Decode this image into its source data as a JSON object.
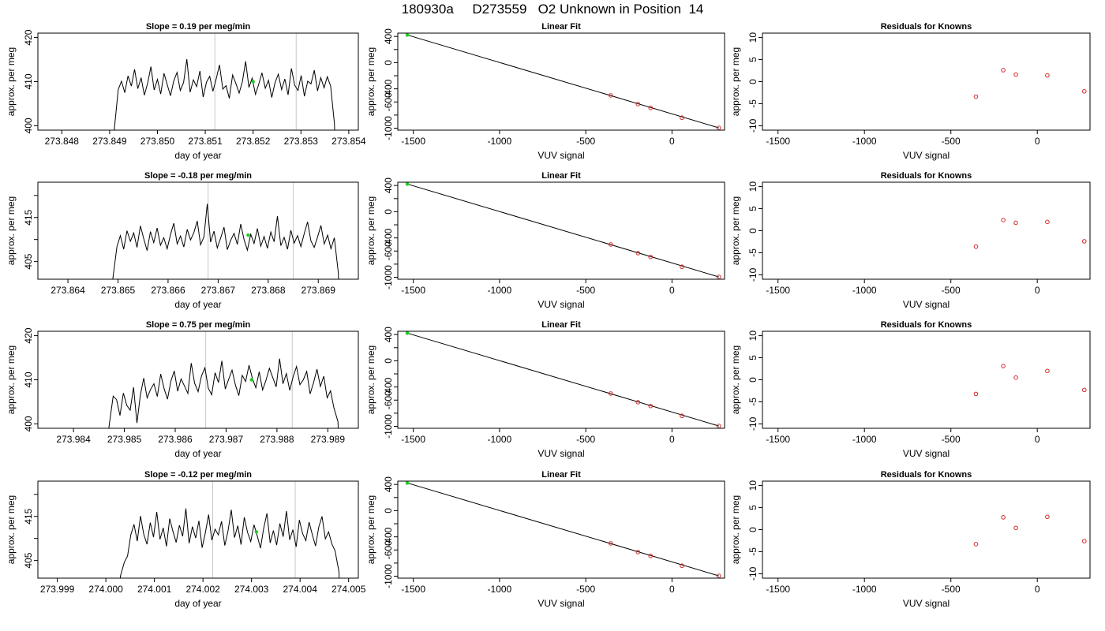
{
  "figure": {
    "title": "180930a     D273559   O2 Unknown in Position  14"
  },
  "labels": {
    "ts_xlabel": "day of year",
    "ylabel": "approx. per meg",
    "fit_title": "Linear Fit",
    "resid_title": "Residuals for Knowns",
    "fit_xlabel": "VUV signal"
  },
  "colors": {
    "line": "#000000",
    "known_points": "#d62728",
    "unknown_point": "#22cc22",
    "vertical_markers": "#c8c8c8"
  },
  "chart_data": [
    {
      "type": "line",
      "row": 1,
      "title": "Slope =  0.19  per meg/min",
      "xlabel": "day of year",
      "ylabel": "approx. per meg",
      "xlim": [
        273.8475,
        273.8542
      ],
      "ylim": [
        399,
        421
      ],
      "xticks": [
        "273.848",
        "273.849",
        "273.850",
        "273.851",
        "273.852",
        "273.853",
        "273.854"
      ],
      "xtick_values": [
        273.848,
        273.849,
        273.85,
        273.851,
        273.852,
        273.853,
        273.854
      ],
      "yticks": [
        400,
        410,
        420
      ],
      "vlines": [
        273.8512,
        273.8529
      ],
      "trace": {
        "x_start": 273.8491,
        "x_end": 273.8537,
        "base": 409.5,
        "values": [
          408.2,
          410.1,
          407.5,
          411.3,
          409.0,
          412.8,
          408.4,
          410.9,
          406.9,
          409.7,
          413.4,
          408.1,
          410.5,
          407.2,
          411.9,
          409.3,
          406.8,
          410.2,
          412.1,
          408.0,
          409.8,
          415.1,
          407.6,
          410.4,
          408.9,
          412.4,
          406.5,
          409.9,
          411.2,
          407.8,
          410.7,
          413.8,
          408.3,
          409.1,
          406.2,
          411.5,
          409.6,
          407.4,
          410.0,
          414.6,
          408.7,
          410.8,
          407.1,
          409.4,
          412.0,
          408.5,
          410.3,
          406.4,
          409.8,
          411.7,
          408.2,
          410.6,
          407.0,
          413.0,
          409.2,
          408.0,
          411.4,
          406.7,
          410.1,
          409.5,
          412.6,
          407.9,
          410.9,
          408.6,
          411.1,
          409.0
        ]
      },
      "unknown_point": {
        "x": 273.852,
        "y": 410.0
      }
    },
    {
      "type": "scatter",
      "row": 1,
      "title": "Linear Fit",
      "xlabel": "VUV signal",
      "ylabel": "approx. per meg",
      "xlim": [
        -1590,
        305
      ],
      "ylim": [
        -1030,
        450
      ],
      "xticks": [
        -1500,
        -1000,
        -500,
        0
      ],
      "yticks": [
        -1000,
        -800,
        -600,
        -400,
        -200,
        0,
        200,
        400
      ],
      "ytick_labels": [
        "-1000",
        "",
        "-600",
        "-400",
        "",
        "0",
        "",
        "400"
      ],
      "fit_line": [
        [
          -1535,
          422
        ],
        [
          272,
          -995
        ]
      ],
      "known_points": [
        {
          "x": -355,
          "y": -500
        },
        {
          "x": -197,
          "y": -632
        },
        {
          "x": -124,
          "y": -690
        },
        {
          "x": 58,
          "y": -840
        },
        {
          "x": 272,
          "y": -995
        }
      ],
      "unknown_point": {
        "x": -1535,
        "y": 422
      }
    },
    {
      "type": "scatter",
      "row": 1,
      "title": "Residuals for Knowns",
      "xlabel": "VUV signal",
      "ylabel": "approx. per meg",
      "xlim": [
        -1590,
        305
      ],
      "ylim": [
        -11,
        11
      ],
      "xticks": [
        -1500,
        -1000,
        -500,
        0
      ],
      "yticks": [
        -10,
        -5,
        0,
        5,
        10
      ],
      "known_points": [
        {
          "x": -355,
          "y": -3.4
        },
        {
          "x": -197,
          "y": 2.6
        },
        {
          "x": -124,
          "y": 1.6
        },
        {
          "x": 58,
          "y": 1.4
        },
        {
          "x": 272,
          "y": -2.2
        }
      ]
    },
    {
      "type": "line",
      "row": 2,
      "title": "Slope =  -0.18  per meg/min",
      "xlabel": "day of year",
      "ylabel": "approx. per meg",
      "xlim": [
        273.8634,
        273.8698
      ],
      "ylim": [
        401,
        423
      ],
      "xticks": [
        "273.864",
        "273.865",
        "273.866",
        "273.867",
        "273.868",
        "273.869"
      ],
      "xtick_values": [
        273.864,
        273.865,
        273.866,
        273.867,
        273.868,
        273.869
      ],
      "yticks": [
        405,
        415
      ],
      "yticks_minor": [
        410,
        420
      ],
      "vlines": [
        273.8668,
        273.8685
      ],
      "trace": {
        "x_start": 273.8649,
        "x_end": 273.8694,
        "base": 410.5,
        "values": [
          408.4,
          410.9,
          407.8,
          412.0,
          409.6,
          411.5,
          408.2,
          413.1,
          410.2,
          407.5,
          411.8,
          409.3,
          412.6,
          408.7,
          410.4,
          407.9,
          411.1,
          413.7,
          409.0,
          410.8,
          408.3,
          412.3,
          409.9,
          411.6,
          414.2,
          408.8,
          410.6,
          418.1,
          409.4,
          411.9,
          408.1,
          410.3,
          412.8,
          407.7,
          409.8,
          411.4,
          408.9,
          413.5,
          410.0,
          407.6,
          411.2,
          409.1,
          412.5,
          408.5,
          410.7,
          408.0,
          411.7,
          409.5,
          415.3,
          408.6,
          410.5,
          407.8,
          412.1,
          409.2,
          410.9,
          408.4,
          411.3,
          414.0,
          409.7,
          408.2,
          410.6,
          413.2,
          409.0,
          411.0,
          407.9,
          410.4
        ]
      },
      "unknown_point": {
        "x": 273.8676,
        "y": 411.0
      }
    },
    {
      "type": "scatter",
      "row": 2,
      "title": "Linear Fit",
      "xlabel": "VUV signal",
      "ylabel": "approx. per meg",
      "xlim": [
        -1590,
        305
      ],
      "ylim": [
        -1030,
        450
      ],
      "xticks": [
        -1500,
        -1000,
        -500,
        0
      ],
      "yticks": [
        -1000,
        -800,
        -600,
        -400,
        -200,
        0,
        200,
        400
      ],
      "ytick_labels": [
        "-1000",
        "",
        "-600",
        "-400",
        "",
        "0",
        "",
        "400"
      ],
      "fit_line": [
        [
          -1535,
          422
        ],
        [
          272,
          -995
        ]
      ],
      "known_points": [
        {
          "x": -355,
          "y": -500
        },
        {
          "x": -197,
          "y": -632
        },
        {
          "x": -124,
          "y": -690
        },
        {
          "x": 58,
          "y": -840
        },
        {
          "x": 272,
          "y": -995
        }
      ],
      "unknown_point": {
        "x": -1535,
        "y": 422
      }
    },
    {
      "type": "scatter",
      "row": 2,
      "title": "Residuals for Knowns",
      "xlabel": "VUV signal",
      "ylabel": "approx. per meg",
      "xlim": [
        -1590,
        305
      ],
      "ylim": [
        -11,
        11
      ],
      "xticks": [
        -1500,
        -1000,
        -500,
        0
      ],
      "yticks": [
        -10,
        -5,
        0,
        5,
        10
      ],
      "known_points": [
        {
          "x": -355,
          "y": -3.6
        },
        {
          "x": -197,
          "y": 2.4
        },
        {
          "x": -124,
          "y": 1.8
        },
        {
          "x": 58,
          "y": 2.0
        },
        {
          "x": 272,
          "y": -2.4
        }
      ]
    },
    {
      "type": "line",
      "row": 3,
      "title": "Slope =  0.75  per meg/min",
      "xlabel": "day of year",
      "ylabel": "approx. per meg",
      "xlim": [
        273.9833,
        273.9896
      ],
      "ylim": [
        399,
        421
      ],
      "xticks": [
        "273.984",
        "273.985",
        "273.986",
        "273.987",
        "273.988",
        "273.989"
      ],
      "xtick_values": [
        273.984,
        273.985,
        273.986,
        273.987,
        273.988,
        273.989
      ],
      "yticks": [
        400,
        410,
        420
      ],
      "vlines": [
        273.9866,
        273.9883
      ],
      "trace": {
        "x_start": 273.9847,
        "x_end": 273.9892,
        "base": 408.5,
        "values": [
          406.3,
          405.5,
          401.9,
          407.0,
          404.2,
          403.1,
          408.3,
          400.2,
          406.5,
          410.4,
          405.9,
          407.8,
          409.1,
          406.2,
          411.3,
          408.0,
          405.6,
          409.7,
          412.0,
          407.4,
          410.2,
          408.6,
          406.9,
          413.8,
          409.2,
          407.3,
          410.9,
          412.7,
          408.1,
          406.6,
          411.6,
          409.4,
          414.3,
          407.9,
          410.1,
          412.2,
          408.8,
          406.4,
          411.0,
          409.6,
          413.3,
          410.3,
          408.2,
          411.8,
          407.7,
          409.9,
          412.6,
          410.5,
          408.4,
          414.8,
          409.1,
          411.4,
          407.6,
          410.7,
          413.0,
          408.9,
          410.0,
          411.9,
          406.8,
          409.3,
          412.4,
          408.5,
          410.8,
          405.9,
          407.5,
          403.6
        ]
      },
      "unknown_point": {
        "x": 273.9875,
        "y": 410.0
      }
    },
    {
      "type": "scatter",
      "row": 3,
      "title": "Linear Fit",
      "xlabel": "VUV signal",
      "ylabel": "approx. per meg",
      "xlim": [
        -1590,
        305
      ],
      "ylim": [
        -1030,
        450
      ],
      "xticks": [
        -1500,
        -1000,
        -500,
        0
      ],
      "yticks": [
        -1000,
        -800,
        -600,
        -400,
        -200,
        0,
        200,
        400
      ],
      "ytick_labels": [
        "-1000",
        "",
        "-600",
        "-400",
        "",
        "0",
        "",
        "400"
      ],
      "fit_line": [
        [
          -1535,
          422
        ],
        [
          272,
          -995
        ]
      ],
      "known_points": [
        {
          "x": -355,
          "y": -500
        },
        {
          "x": -197,
          "y": -632
        },
        {
          "x": -124,
          "y": -690
        },
        {
          "x": 58,
          "y": -840
        },
        {
          "x": 272,
          "y": -995
        }
      ],
      "unknown_point": {
        "x": -1535,
        "y": 422
      }
    },
    {
      "type": "scatter",
      "row": 3,
      "title": "Residuals for Knowns",
      "xlabel": "VUV signal",
      "ylabel": "approx. per meg",
      "xlim": [
        -1590,
        305
      ],
      "ylim": [
        -11,
        11
      ],
      "xticks": [
        -1500,
        -1000,
        -500,
        0
      ],
      "yticks": [
        -10,
        -5,
        0,
        5,
        10
      ],
      "known_points": [
        {
          "x": -355,
          "y": -3.2
        },
        {
          "x": -197,
          "y": 3.1
        },
        {
          "x": -124,
          "y": 0.5
        },
        {
          "x": 58,
          "y": 2.0
        },
        {
          "x": 272,
          "y": -2.3
        }
      ]
    },
    {
      "type": "line",
      "row": 4,
      "title": "Slope =  -0.12  per meg/min",
      "xlabel": "day of year",
      "ylabel": "approx. per meg",
      "xlim": [
        273.9986,
        274.0052
      ],
      "ylim": [
        401,
        423
      ],
      "xticks": [
        "273.999",
        "274.000",
        "274.001",
        "274.002",
        "274.003",
        "274.004",
        "274.005"
      ],
      "xtick_values": [
        273.999,
        274.0,
        274.001,
        274.002,
        274.003,
        274.004,
        274.005
      ],
      "yticks": [
        405,
        415
      ],
      "yticks_minor": [
        410,
        420
      ],
      "vlines": [
        274.0022,
        274.0039
      ],
      "trace": {
        "x_start": 274.0003,
        "x_end": 274.0048,
        "base": 411.5,
        "values": [
          404.6,
          406.0,
          410.8,
          413.2,
          409.4,
          415.1,
          411.0,
          408.7,
          413.6,
          410.3,
          416.0,
          409.8,
          412.4,
          408.2,
          414.5,
          411.6,
          409.1,
          413.0,
          410.5,
          416.8,
          408.9,
          412.7,
          410.1,
          414.0,
          407.9,
          411.3,
          415.4,
          409.6,
          412.1,
          410.8,
          413.9,
          408.4,
          411.7,
          416.5,
          410.2,
          412.9,
          408.6,
          414.8,
          411.4,
          409.3,
          413.1,
          410.6,
          407.8,
          412.3,
          415.7,
          409.0,
          411.8,
          408.5,
          413.4,
          410.4,
          416.2,
          409.7,
          412.0,
          408.1,
          414.2,
          411.1,
          409.5,
          413.7,
          410.9,
          408.3,
          412.6,
          415.0,
          409.9,
          411.5,
          408.8,
          407.2
        ]
      },
      "unknown_point": {
        "x": 274.0031,
        "y": 411.5
      }
    },
    {
      "type": "scatter",
      "row": 4,
      "title": "Linear Fit",
      "xlabel": "VUV signal",
      "ylabel": "approx. per meg",
      "xlim": [
        -1590,
        305
      ],
      "ylim": [
        -1030,
        450
      ],
      "xticks": [
        -1500,
        -1000,
        -500,
        0
      ],
      "yticks": [
        -1000,
        -800,
        -600,
        -400,
        -200,
        0,
        200,
        400
      ],
      "ytick_labels": [
        "-1000",
        "",
        "-600",
        "-400",
        "",
        "0",
        "",
        "400"
      ],
      "fit_line": [
        [
          -1535,
          422
        ],
        [
          272,
          -995
        ]
      ],
      "known_points": [
        {
          "x": -355,
          "y": -500
        },
        {
          "x": -197,
          "y": -632
        },
        {
          "x": -124,
          "y": -690
        },
        {
          "x": 58,
          "y": -840
        },
        {
          "x": 272,
          "y": -995
        }
      ],
      "unknown_point": {
        "x": -1535,
        "y": 422
      }
    },
    {
      "type": "scatter",
      "row": 4,
      "title": "Residuals for Knowns",
      "xlabel": "VUV signal",
      "ylabel": "approx. per meg",
      "xlim": [
        -1590,
        305
      ],
      "ylim": [
        -11,
        11
      ],
      "xticks": [
        -1500,
        -1000,
        -500,
        0
      ],
      "yticks": [
        -10,
        -5,
        0,
        5,
        10
      ],
      "known_points": [
        {
          "x": -355,
          "y": -3.3
        },
        {
          "x": -197,
          "y": 2.8
        },
        {
          "x": -124,
          "y": 0.4
        },
        {
          "x": 58,
          "y": 2.9
        },
        {
          "x": 272,
          "y": -2.6
        }
      ]
    }
  ]
}
